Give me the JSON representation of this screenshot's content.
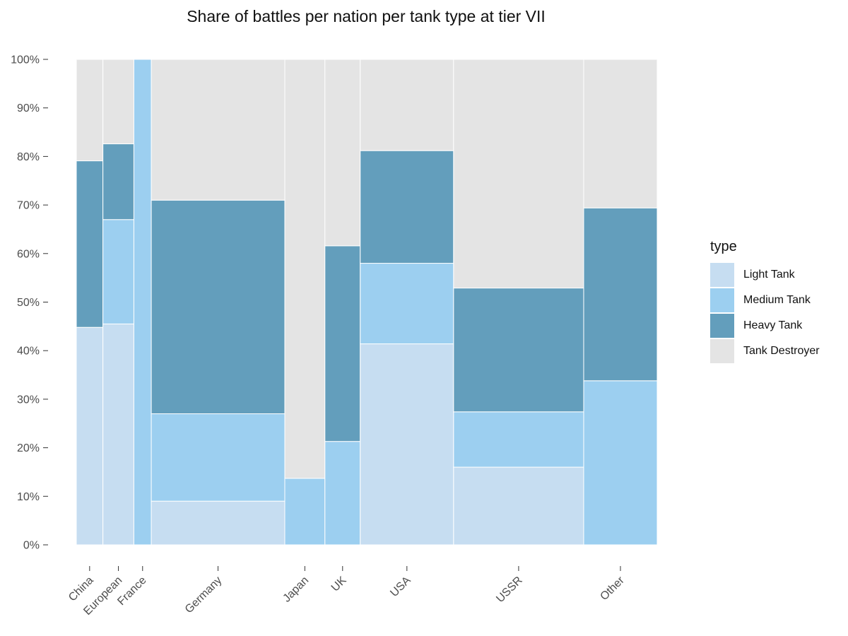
{
  "chart_data": {
    "type": "bar",
    "title": "Share of battles per nation per tank type at tier VII",
    "xlabel": "",
    "ylabel": "",
    "ylim": [
      0,
      1
    ],
    "y_ticks": [
      "0%",
      "10%",
      "20%",
      "30%",
      "40%",
      "50%",
      "60%",
      "70%",
      "80%",
      "90%",
      "100%"
    ],
    "legend": {
      "title": "type",
      "position": "right"
    },
    "categories": [
      "China",
      "European",
      "France",
      "Germany",
      "Japan",
      "UK",
      "USA",
      "USSR",
      "Other"
    ],
    "category_widths": [
      0.055,
      0.064,
      0.036,
      0.276,
      0.083,
      0.073,
      0.193,
      0.269,
      0.152
    ],
    "series": [
      {
        "name": "Light Tank",
        "color": "#c6ddf1",
        "values": [
          0.448,
          0.455,
          0,
          0.09,
          0,
          0,
          0.414,
          0.16,
          0
        ]
      },
      {
        "name": "Medium Tank",
        "color": "#9ccff0",
        "values": [
          0,
          0.215,
          1.0,
          0.18,
          0.137,
          0.213,
          0.166,
          0.114,
          0.338
        ]
      },
      {
        "name": "Heavy Tank",
        "color": "#639ebc",
        "values": [
          0.343,
          0.156,
          0,
          0.44,
          0,
          0.403,
          0.232,
          0.255,
          0.356
        ]
      },
      {
        "name": "Tank Destroyer",
        "color": "#e4e4e4",
        "values": [
          0.209,
          0.174,
          0,
          0.29,
          0.863,
          0.384,
          0.188,
          0.471,
          0.306
        ]
      }
    ]
  }
}
